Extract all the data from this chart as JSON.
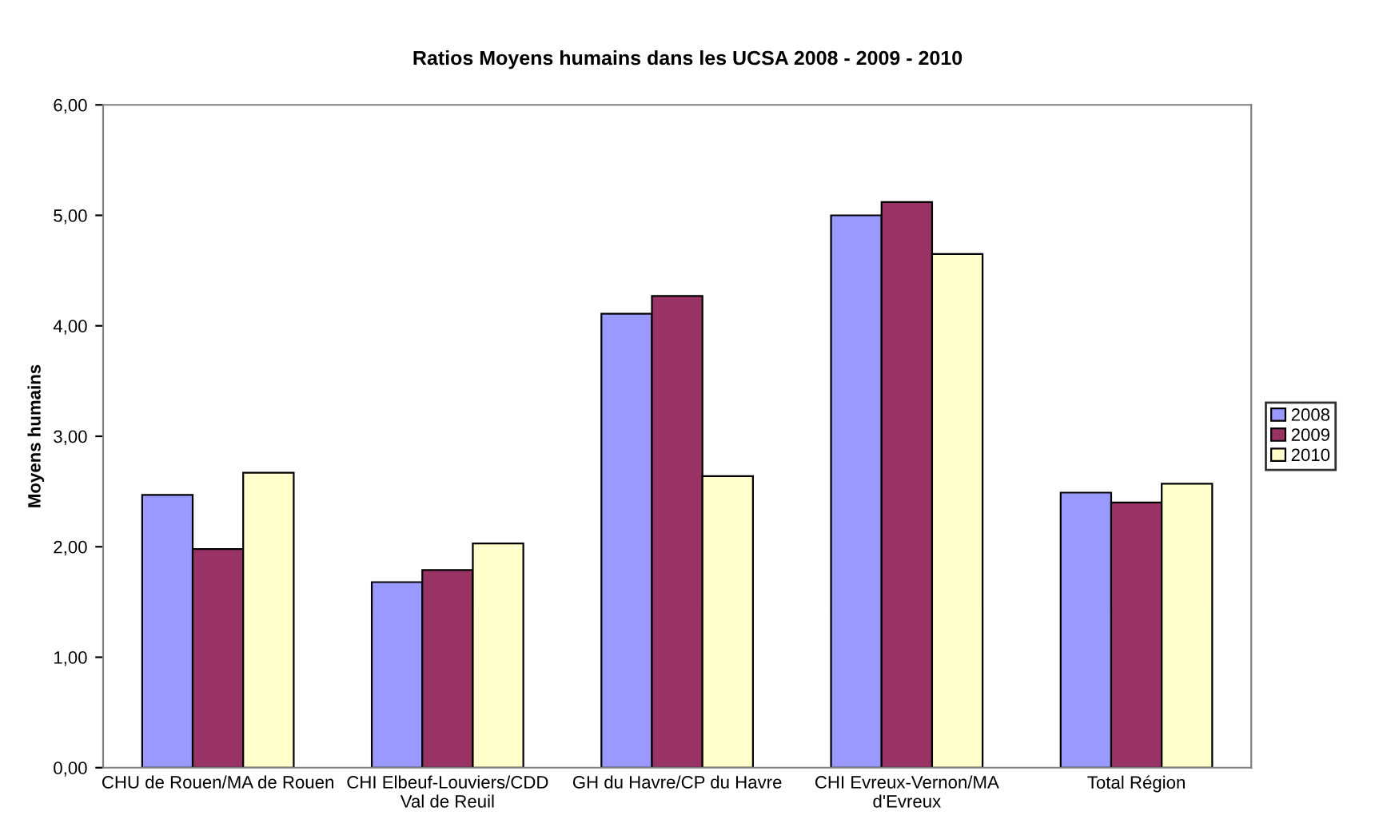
{
  "chart_data": {
    "type": "bar",
    "title": "Ratios Moyens humains dans les UCSA 2008 - 2009 - 2010",
    "ylabel": "Moyens humains",
    "categories": [
      "CHU de Rouen/MA de Rouen",
      "CHI Elbeuf-Louviers/CDD Val de Reuil",
      "GH du Havre/CP du Havre",
      "CHI Evreux-Vernon/MA d'Evreux",
      "Total Région"
    ],
    "series": [
      {
        "name": "2008",
        "color": "#9999ff",
        "values": [
          2.47,
          1.68,
          4.11,
          5.0,
          2.49
        ]
      },
      {
        "name": "2009",
        "color": "#993366",
        "values": [
          1.98,
          1.79,
          4.27,
          5.12,
          2.4
        ]
      },
      {
        "name": "2010",
        "color": "#ffffcc",
        "values": [
          2.67,
          2.03,
          2.64,
          4.65,
          2.57
        ]
      }
    ],
    "ylim": [
      0,
      6
    ],
    "yticks": [
      {
        "value": 0,
        "label": "0,00"
      },
      {
        "value": 1,
        "label": "1,00"
      },
      {
        "value": 2,
        "label": "2,00"
      },
      {
        "value": 3,
        "label": "3,00"
      },
      {
        "value": 4,
        "label": "4,00"
      },
      {
        "value": 5,
        "label": "5,00"
      },
      {
        "value": 6,
        "label": "6,00"
      }
    ],
    "grid": false,
    "legend": "right"
  }
}
